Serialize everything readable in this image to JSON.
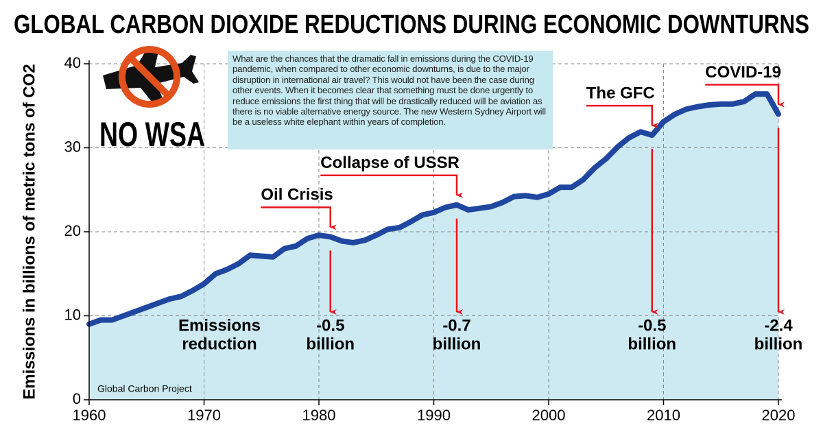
{
  "chart_data": {
    "type": "line",
    "title": "GLOBAL CARBON DIOXIDE REDUCTIONS DURING ECONOMIC DOWNTURNS",
    "y_label": "Emissions in billions of metric tons of CO2",
    "source": "Global Carbon Project",
    "logo_text": "NO WSA",
    "note": "What are the chances that the dramatic fall in emissions during the COVID-19 pandemic, when compared to other economic downturns, is due to the major disruption in international air travel? This would not have been the case during other events. When it becomes clear that something must be done urgently to reduce emissions the first thing that will be drastically reduced will be aviation as there is no viable alternative energy source. The new Western Sydney Airport will be a useless white elephant within years of completion.",
    "x": [
      1960,
      1961,
      1962,
      1963,
      1964,
      1965,
      1966,
      1967,
      1968,
      1969,
      1970,
      1971,
      1972,
      1973,
      1974,
      1975,
      1976,
      1977,
      1978,
      1979,
      1980,
      1981,
      1982,
      1983,
      1984,
      1985,
      1986,
      1987,
      1988,
      1989,
      1990,
      1991,
      1992,
      1993,
      1994,
      1995,
      1996,
      1997,
      1998,
      1999,
      2000,
      2001,
      2002,
      2003,
      2004,
      2005,
      2006,
      2007,
      2008,
      2009,
      2010,
      2011,
      2012,
      2013,
      2014,
      2015,
      2016,
      2017,
      2018,
      2019,
      2020
    ],
    "values": [
      9.0,
      9.5,
      9.5,
      10.0,
      10.5,
      11.0,
      11.5,
      12.0,
      12.3,
      13.0,
      13.8,
      15.0,
      15.5,
      16.2,
      17.2,
      17.1,
      17.0,
      18.0,
      18.3,
      19.2,
      19.6,
      19.4,
      18.9,
      18.7,
      19.0,
      19.6,
      20.3,
      20.5,
      21.2,
      22.0,
      22.3,
      22.9,
      23.2,
      22.6,
      22.8,
      23.0,
      23.5,
      24.2,
      24.3,
      24.1,
      24.5,
      25.3,
      25.3,
      26.2,
      27.6,
      28.7,
      30.1,
      31.2,
      31.9,
      31.5,
      33.1,
      34.0,
      34.6,
      34.9,
      35.1,
      35.2,
      35.2,
      35.5,
      36.4,
      36.4,
      34.0
    ],
    "color": "#1f47a0",
    "fill_color": "#cdeaf2",
    "xlim": [
      1960,
      2020
    ],
    "ylim": [
      0,
      40
    ],
    "xticks": [
      1960,
      1970,
      1980,
      1990,
      2000,
      2010,
      2020
    ],
    "yticks": [
      0,
      10,
      20,
      30,
      40
    ],
    "grid": true,
    "annotation_color": "#e8141c",
    "reduction_label": [
      "Emissions",
      "reduction"
    ],
    "events": [
      {
        "label": "Oil Crisis",
        "year": 1981,
        "reduction": [
          "-0.5",
          "billion"
        ]
      },
      {
        "label": "Collapse of USSR",
        "year": 1992,
        "reduction": [
          "-0.7",
          "billion"
        ]
      },
      {
        "label": "The GFC",
        "year": 2009,
        "reduction": [
          "-0.5",
          "billion"
        ]
      },
      {
        "label": "COVID-19",
        "year": 2020,
        "reduction": [
          "-2.4",
          "billion"
        ]
      }
    ]
  }
}
